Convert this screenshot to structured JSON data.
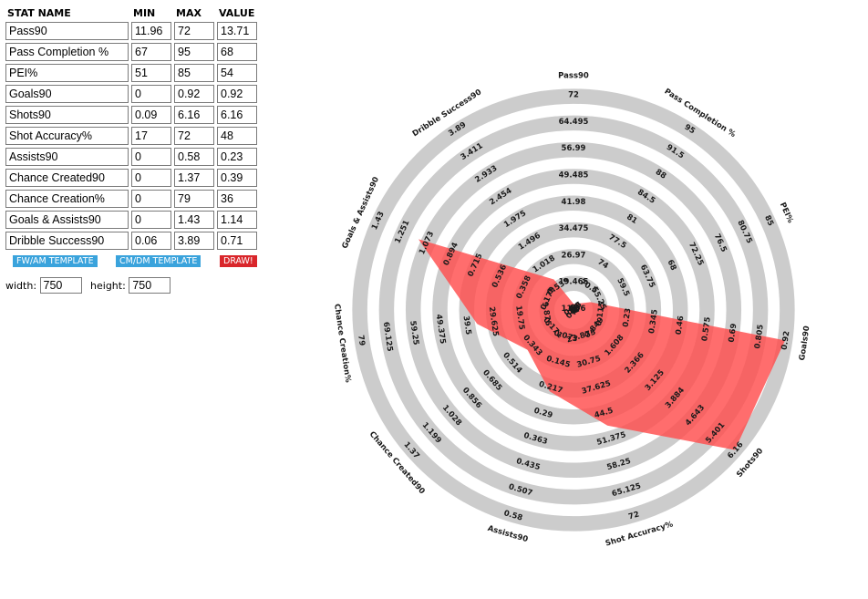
{
  "editor": {
    "headers": {
      "name": "STAT NAME",
      "min": "MIN",
      "max": "MAX",
      "value": "VALUE"
    },
    "rows": [
      {
        "name": "Pass90",
        "min": "11.96",
        "max": "72",
        "value": "13.71"
      },
      {
        "name": "Pass Completion %",
        "min": "67",
        "max": "95",
        "value": "68"
      },
      {
        "name": "PEI%",
        "min": "51",
        "max": "85",
        "value": "54"
      },
      {
        "name": "Goals90",
        "min": "0",
        "max": "0.92",
        "value": "0.92"
      },
      {
        "name": "Shots90",
        "min": "0.09",
        "max": "6.16",
        "value": "6.16"
      },
      {
        "name": "Shot Accuracy%",
        "min": "17",
        "max": "72",
        "value": "48"
      },
      {
        "name": "Assists90",
        "min": "0",
        "max": "0.58",
        "value": "0.23"
      },
      {
        "name": "Chance Created90",
        "min": "0",
        "max": "1.37",
        "value": "0.39"
      },
      {
        "name": "Chance Creation%",
        "min": "0",
        "max": "79",
        "value": "36"
      },
      {
        "name": "Goals & Assists90",
        "min": "0",
        "max": "1.43",
        "value": "1.14"
      },
      {
        "name": "Dribble Success90",
        "min": "0.06",
        "max": "3.89",
        "value": "0.71"
      }
    ],
    "buttons": {
      "fw_am": "FW/AM TEMPLATE",
      "cm_dm": "CM/DM TEMPLATE",
      "draw": "DRAW!"
    },
    "width_label": "width:",
    "width_value": "750",
    "height_label": "height:",
    "height_value": "750"
  },
  "colors": {
    "ring": "#cccccc",
    "fill": "#ff4d4d",
    "button_blue": "#3aa3dc",
    "button_red": "#d9262b"
  },
  "chart_data": {
    "type": "radar",
    "rings": 8,
    "axes": [
      {
        "name": "Pass90",
        "min": 11.96,
        "max": 72,
        "value": 13.71,
        "ticks": [
          "11.96",
          "19.465",
          "26.97",
          "34.475",
          "41.98",
          "49.485",
          "56.99",
          "64.495",
          "72"
        ]
      },
      {
        "name": "Pass Completion %",
        "min": 67,
        "max": 95,
        "value": 68,
        "ticks": [
          "67",
          "70.5",
          "74",
          "77.5",
          "81",
          "84.5",
          "88",
          "91.5",
          "95"
        ]
      },
      {
        "name": "PEI%",
        "min": 51,
        "max": 85,
        "value": 54,
        "ticks": [
          "51",
          "55.25",
          "59.5",
          "63.75",
          "68",
          "72.25",
          "76.5",
          "80.75",
          "85"
        ]
      },
      {
        "name": "Goals90",
        "min": 0,
        "max": 0.92,
        "value": 0.92,
        "ticks": [
          "0",
          "0.115",
          "0.23",
          "0.345",
          "0.46",
          "0.575",
          "0.69",
          "0.805",
          "0.92"
        ]
      },
      {
        "name": "Shots90",
        "min": 0.09,
        "max": 6.16,
        "value": 6.16,
        "ticks": [
          "0.09",
          "0.849",
          "1.608",
          "2.366",
          "3.125",
          "3.884",
          "4.643",
          "5.401",
          "6.16"
        ]
      },
      {
        "name": "Shot Accuracy%",
        "min": 17,
        "max": 72,
        "value": 48,
        "ticks": [
          "17",
          "23.875",
          "30.75",
          "37.625",
          "44.5",
          "51.375",
          "58.25",
          "65.125",
          "72"
        ]
      },
      {
        "name": "Assists90",
        "min": 0,
        "max": 0.58,
        "value": 0.23,
        "ticks": [
          "0",
          "0.073",
          "0.145",
          "0.217",
          "0.29",
          "0.363",
          "0.435",
          "0.507",
          "0.58"
        ]
      },
      {
        "name": "Chance Created90",
        "min": 0,
        "max": 1.37,
        "value": 0.39,
        "ticks": [
          "0",
          "0.171",
          "0.343",
          "0.514",
          "0.685",
          "0.856",
          "1.028",
          "1.199",
          "1.37"
        ]
      },
      {
        "name": "Chance Creation%",
        "min": 0,
        "max": 79,
        "value": 36,
        "ticks": [
          "0",
          "9.875",
          "19.75",
          "29.625",
          "39.5",
          "49.375",
          "59.25",
          "69.125",
          "79"
        ]
      },
      {
        "name": "Goals & Assists90",
        "min": 0,
        "max": 1.43,
        "value": 1.14,
        "ticks": [
          "0",
          "0.179",
          "0.358",
          "0.536",
          "0.715",
          "0.894",
          "1.073",
          "1.251",
          "1.43"
        ]
      },
      {
        "name": "Dribble Success90",
        "min": 0.06,
        "max": 3.89,
        "value": 0.71,
        "ticks": [
          "0.06",
          "0.539",
          "1.018",
          "1.496",
          "1.975",
          "2.454",
          "2.933",
          "3.411",
          "3.89"
        ]
      }
    ]
  }
}
